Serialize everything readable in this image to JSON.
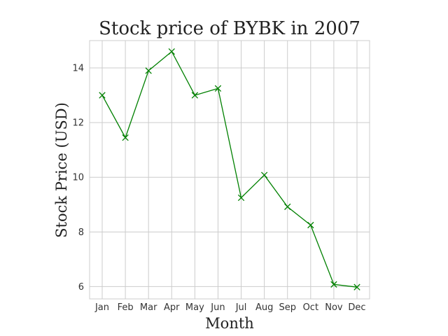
{
  "chart_data": {
    "type": "line",
    "title": "Stock price of BYBK in 2007",
    "xlabel": "Month",
    "ylabel": "Stock Price (USD)",
    "categories": [
      "Jan",
      "Feb",
      "Mar",
      "Apr",
      "May",
      "Jun",
      "Jul",
      "Aug",
      "Sep",
      "Oct",
      "Nov",
      "Dec"
    ],
    "series": [
      {
        "values": [
          13.0,
          11.45,
          13.9,
          14.6,
          13.0,
          13.25,
          9.25,
          10.08,
          8.92,
          8.25,
          6.08,
          5.98
        ],
        "color": "#008000",
        "marker": "x"
      }
    ],
    "ylim": [
      5.55,
      15.0
    ],
    "yticks": [
      6,
      8,
      10,
      12,
      14
    ],
    "grid": true
  }
}
